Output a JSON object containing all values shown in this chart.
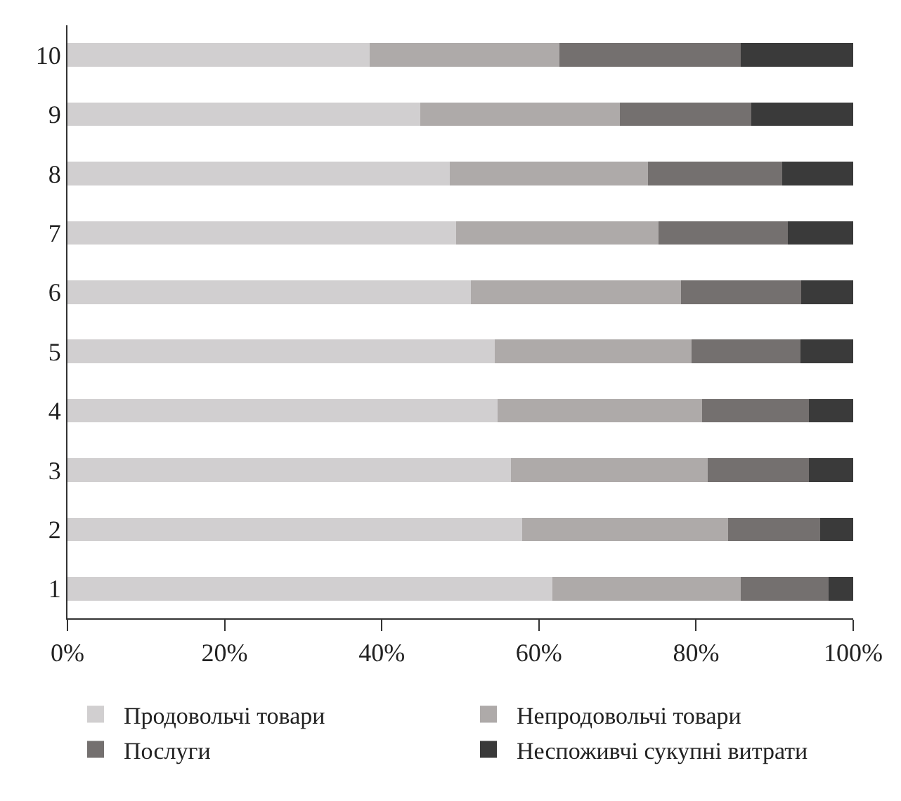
{
  "chart_data": {
    "type": "bar",
    "orientation": "horizontal",
    "stacked": true,
    "categories": [
      "10",
      "9",
      "8",
      "7",
      "6",
      "5",
      "4",
      "3",
      "2",
      "1"
    ],
    "series": [
      {
        "name": "Продовольчі товари",
        "color": "#d1cfd0",
        "values": [
          38.5,
          44.9,
          48.7,
          49.5,
          51.3,
          54.4,
          54.7,
          56.4,
          57.9,
          61.7
        ]
      },
      {
        "name": "Непродовольчі товари",
        "color": "#aeaaa9",
        "values": [
          24.1,
          25.4,
          25.2,
          25.7,
          26.8,
          25.0,
          26.1,
          25.1,
          26.2,
          24.0
        ]
      },
      {
        "name": "Послуги",
        "color": "#74706f",
        "values": [
          23.1,
          16.7,
          17.1,
          16.5,
          15.3,
          13.9,
          13.6,
          12.9,
          11.7,
          11.2
        ]
      },
      {
        "name": "Неспоживчі сукупні витрати",
        "color": "#3a3a3a",
        "values": [
          14.3,
          13.0,
          9.0,
          8.3,
          6.6,
          6.7,
          5.6,
          5.6,
          4.2,
          3.1
        ]
      }
    ],
    "xlim": [
      0,
      100
    ],
    "xticks": [
      {
        "value": 0,
        "label": "0%"
      },
      {
        "value": 20,
        "label": "20%"
      },
      {
        "value": 40,
        "label": "40%"
      },
      {
        "value": 60,
        "label": "60%"
      },
      {
        "value": 80,
        "label": "80%"
      },
      {
        "value": 100,
        "label": "100%"
      }
    ],
    "legend": "bottom"
  }
}
